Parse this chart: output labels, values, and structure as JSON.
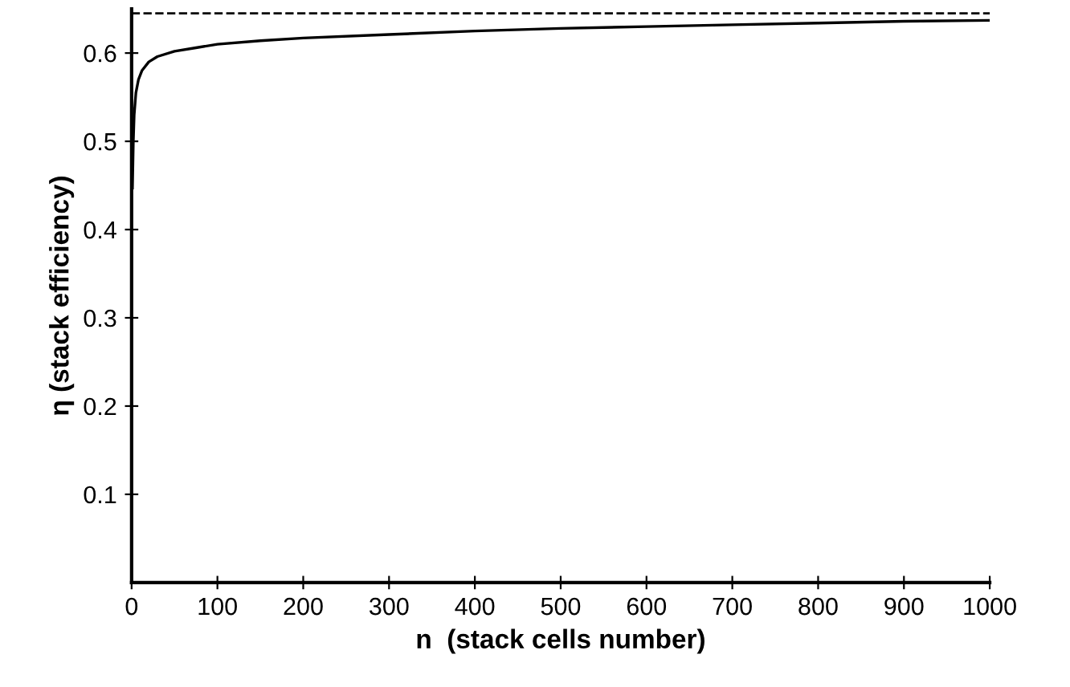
{
  "chart_data": {
    "type": "line",
    "xlabel": "n  (stack cells number)",
    "ylabel": "η (stack efficiency)",
    "x": [
      1,
      2,
      3,
      5,
      8,
      12,
      20,
      30,
      50,
      75,
      100,
      150,
      200,
      300,
      400,
      500,
      600,
      700,
      800,
      900,
      1000
    ],
    "series": [
      {
        "color": "#000000",
        "values": [
          0.447,
          0.5,
          0.53,
          0.555,
          0.57,
          0.58,
          0.59,
          0.596,
          0.602,
          0.606,
          0.61,
          0.614,
          0.617,
          0.621,
          0.625,
          0.628,
          0.63,
          0.632,
          0.634,
          0.636,
          0.637
        ]
      }
    ],
    "xlim": [
      0,
      1000
    ],
    "ylim": [
      0,
      0.65
    ],
    "xticks": [
      0,
      100,
      200,
      300,
      400,
      500,
      600,
      700,
      800,
      900,
      1000
    ],
    "yticks": [
      0.1,
      0.2,
      0.3,
      0.4,
      0.5,
      0.6
    ],
    "ref_lines": [
      {
        "axis": "y",
        "value": 0.645,
        "color": "#000000",
        "line_style": "dashed"
      }
    ],
    "grid": false,
    "legend": false,
    "marker": "none",
    "line_style": "solid"
  }
}
